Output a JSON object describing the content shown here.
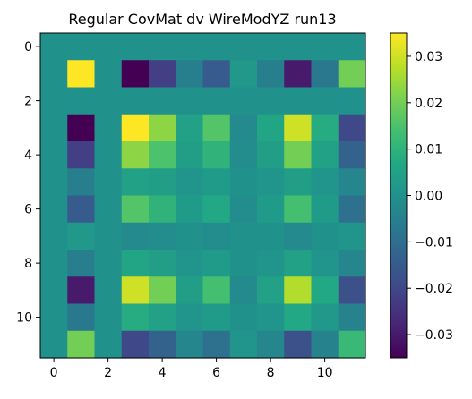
{
  "chart_data": {
    "type": "heatmap",
    "title": "Regular CovMat dv WireModYZ run13",
    "xlabel": "",
    "ylabel": "",
    "n_rows": 12,
    "n_cols": 12,
    "x_ticks": [
      0,
      2,
      4,
      6,
      8,
      10
    ],
    "y_ticks": [
      0,
      2,
      4,
      6,
      8,
      10
    ],
    "colormap": "viridis",
    "vmin": -0.035,
    "vmax": 0.035,
    "colorbar_ticks": [
      0.03,
      0.02,
      0.01,
      0.0,
      -0.01,
      -0.02,
      -0.03
    ],
    "colorbar_tick_labels": [
      "0.03",
      "0.02",
      "0.01",
      "0.00",
      "−0.01",
      "−0.02",
      "−0.03"
    ],
    "values": [
      [
        0.0,
        0.0,
        0.0,
        0.0,
        0.0,
        0.0,
        0.0,
        0.0,
        0.0,
        0.0,
        0.0,
        0.0
      ],
      [
        0.0,
        0.035,
        0.0,
        -0.035,
        -0.022,
        -0.005,
        -0.015,
        0.002,
        -0.005,
        -0.03,
        -0.007,
        0.02
      ],
      [
        0.0,
        0.0,
        0.0,
        0.0,
        0.0,
        0.0,
        0.0,
        0.0,
        0.0,
        0.0,
        0.0,
        0.0
      ],
      [
        0.0,
        -0.035,
        0.0,
        0.035,
        0.023,
        0.005,
        0.016,
        -0.002,
        0.006,
        0.03,
        0.008,
        -0.02
      ],
      [
        0.0,
        -0.022,
        0.0,
        0.023,
        0.015,
        0.004,
        0.01,
        -0.001,
        0.004,
        0.02,
        0.005,
        -0.013
      ],
      [
        0.0,
        -0.005,
        0.0,
        0.005,
        0.004,
        0.001,
        0.003,
        0.0,
        0.001,
        0.004,
        0.001,
        -0.003
      ],
      [
        0.0,
        -0.015,
        0.0,
        0.016,
        0.01,
        0.003,
        0.007,
        -0.001,
        0.003,
        0.014,
        0.003,
        -0.009
      ],
      [
        0.0,
        0.002,
        0.0,
        -0.002,
        -0.001,
        0.0,
        -0.001,
        0.0,
        0.0,
        -0.002,
        0.0,
        0.001
      ],
      [
        0.0,
        -0.005,
        0.0,
        0.006,
        0.004,
        0.001,
        0.003,
        0.0,
        0.001,
        0.005,
        0.001,
        -0.003
      ],
      [
        0.0,
        -0.03,
        0.0,
        0.03,
        0.02,
        0.004,
        0.014,
        -0.002,
        0.005,
        0.027,
        0.007,
        -0.018
      ],
      [
        0.0,
        -0.007,
        0.0,
        0.008,
        0.005,
        0.001,
        0.003,
        0.0,
        0.001,
        0.007,
        0.002,
        -0.004
      ],
      [
        0.0,
        0.02,
        0.0,
        -0.02,
        -0.013,
        -0.003,
        -0.009,
        0.001,
        -0.003,
        -0.018,
        -0.004,
        0.012
      ]
    ]
  }
}
